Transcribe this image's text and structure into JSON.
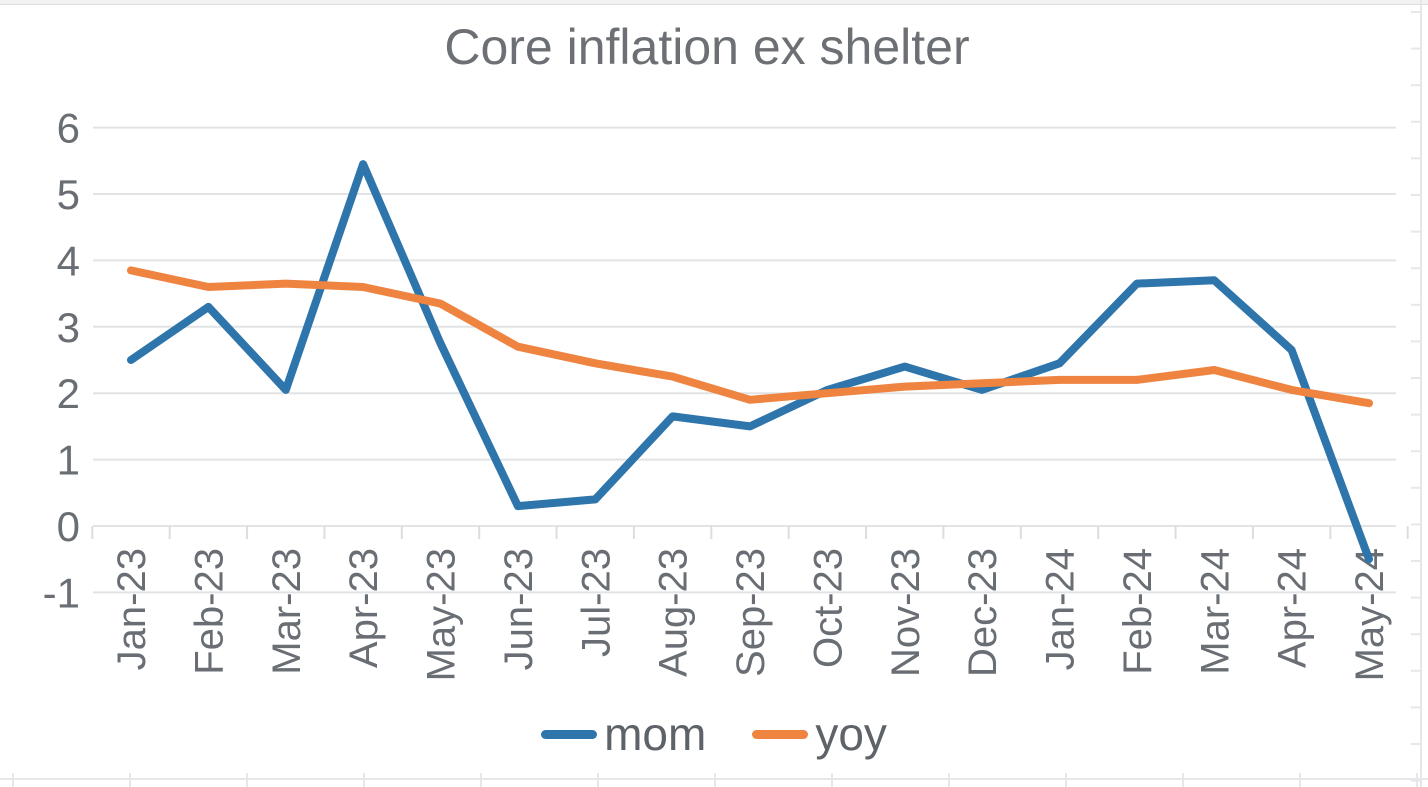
{
  "chart": {
    "title": "Core inflation ex shelter"
  },
  "chart_data": {
    "type": "line",
    "title": "Core inflation ex shelter",
    "xlabel": "",
    "ylabel": "",
    "categories": [
      "Jan-23",
      "Feb-23",
      "Mar-23",
      "Apr-23",
      "May-23",
      "Jun-23",
      "Jul-23",
      "Aug-23",
      "Sep-23",
      "Oct-23",
      "Nov-23",
      "Dec-23",
      "Jan-24",
      "Feb-24",
      "Mar-24",
      "Apr-24",
      "May-24"
    ],
    "series": [
      {
        "name": "mom",
        "color": "#2e75ab",
        "values": [
          2.5,
          3.3,
          2.05,
          5.45,
          2.75,
          0.3,
          0.4,
          1.65,
          1.5,
          2.05,
          2.4,
          2.05,
          2.45,
          3.65,
          3.7,
          2.65,
          -0.5
        ]
      },
      {
        "name": "yoy",
        "color": "#ef8340",
        "values": [
          3.85,
          3.6,
          3.65,
          3.6,
          3.35,
          2.7,
          2.45,
          2.25,
          1.9,
          2.0,
          2.1,
          2.15,
          2.2,
          2.2,
          2.35,
          2.05,
          1.85
        ]
      }
    ],
    "ylim": [
      -1,
      6
    ],
    "ytick_interval": 1,
    "yticks": [
      -1,
      0,
      1,
      2,
      3,
      4,
      5,
      6
    ],
    "grid": true,
    "x_label_rotation_degrees": 90,
    "legend_position": "bottom",
    "axis_text_color": "#696e74",
    "gridline_color": "#e2e3e5"
  }
}
